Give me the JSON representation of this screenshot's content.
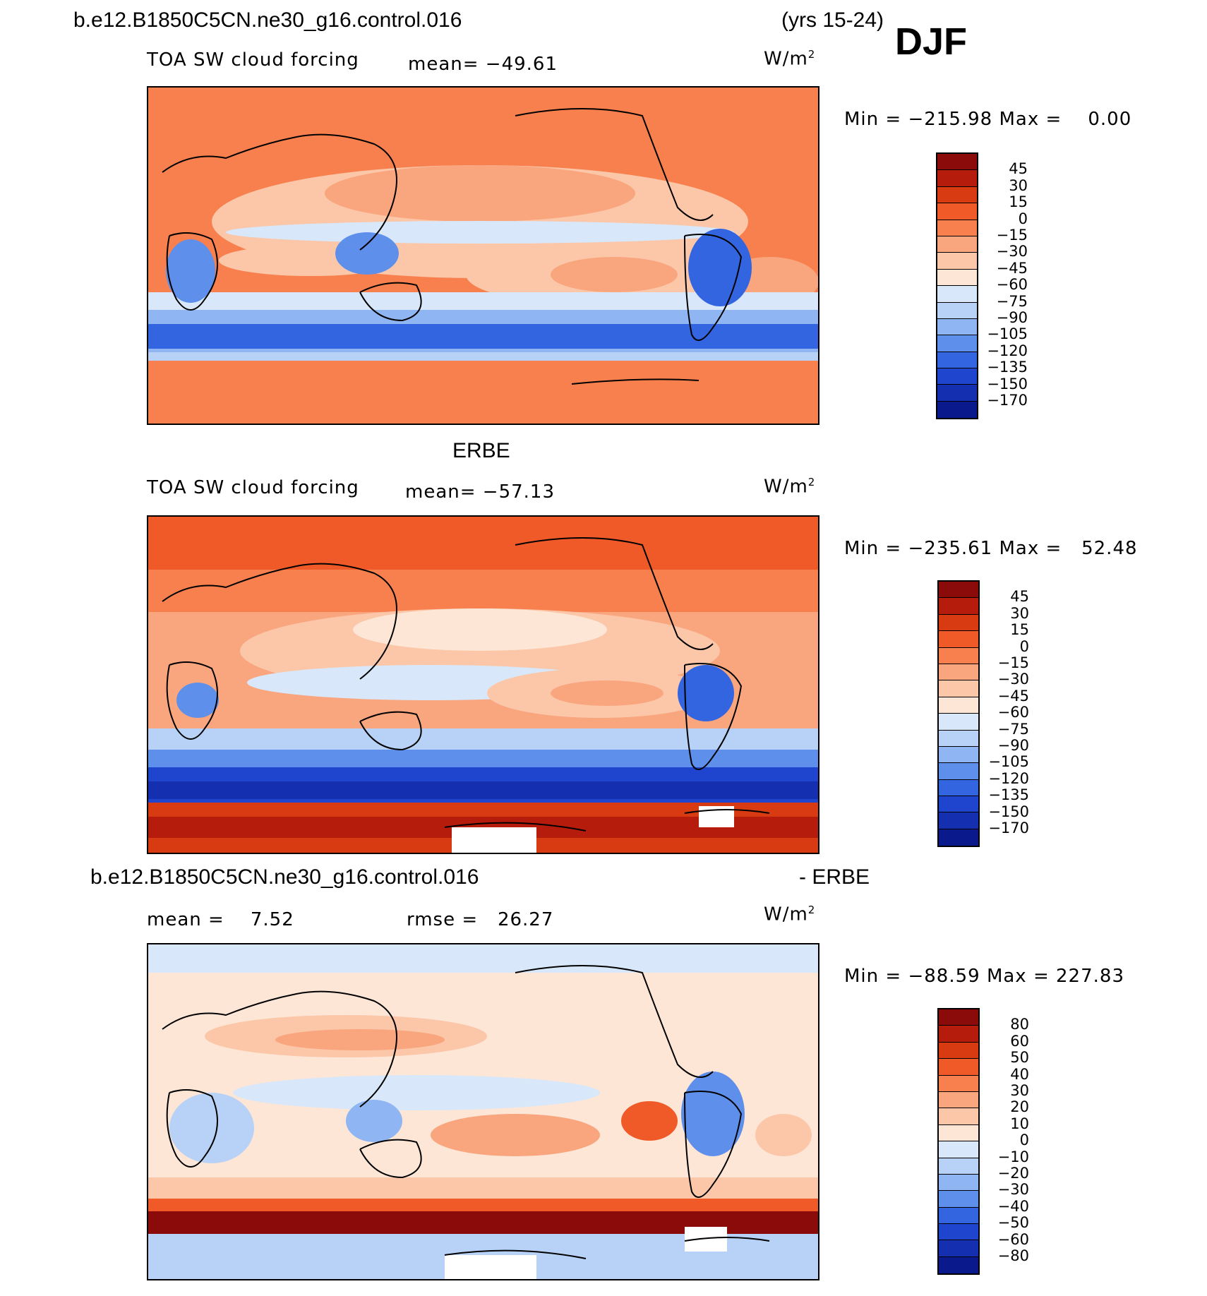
{
  "header": {
    "case_name": "b.e12.B1850C5CN.ne30_g16.control.016",
    "years": "(yrs 15-24)",
    "season": "DJF"
  },
  "panel1": {
    "variable": "TOA SW cloud forcing",
    "mean_label": "mean=",
    "mean_value": "−49.61",
    "units": "W/m",
    "units_exp": "2",
    "min_label": "Min =",
    "min_value": "−215.98",
    "max_label": "Max =",
    "max_value": "0.00"
  },
  "panel2": {
    "title": "ERBE",
    "variable": "TOA SW cloud forcing",
    "mean_label": "mean=",
    "mean_value": "−57.13",
    "units": "W/m",
    "units_exp": "2",
    "min_label": "Min =",
    "min_value": "−235.61",
    "max_label": "Max =",
    "max_value": "52.48"
  },
  "panel3": {
    "title_left": "b.e12.B1850C5CN.ne30_g16.control.016",
    "title_right": "- ERBE",
    "mean_label": "mean =",
    "mean_value": "7.52",
    "rmse_label": "rmse =",
    "rmse_value": "26.27",
    "units": "W/m",
    "units_exp": "2",
    "min_label": "Min =",
    "min_value": "−88.59",
    "max_label": "Max =",
    "max_value": "227.83"
  },
  "colorbar_abs": {
    "labels": [
      "45",
      "30",
      "15",
      "0",
      "−15",
      "−30",
      "−45",
      "−60",
      "−75",
      "−90",
      "−105",
      "−120",
      "−135",
      "−150",
      "−170"
    ],
    "colors": [
      "#8b0a0a",
      "#b51c0c",
      "#d83a12",
      "#f05a28",
      "#f7804e",
      "#f9a57e",
      "#fbc7a8",
      "#fde6d6",
      "#d8e8fa",
      "#b7d2f6",
      "#8fb6f2",
      "#5e8fea",
      "#3365e0",
      "#1f45cf",
      "#1430b0",
      "#0a1a8c"
    ]
  },
  "colorbar_diff": {
    "labels": [
      "80",
      "60",
      "50",
      "40",
      "30",
      "20",
      "10",
      "0",
      "−10",
      "−20",
      "−30",
      "−40",
      "−50",
      "−60",
      "−80"
    ],
    "colors": [
      "#8b0a0a",
      "#b51c0c",
      "#d83a12",
      "#f05a28",
      "#f7804e",
      "#f9a57e",
      "#fbc7a8",
      "#fde6d6",
      "#d8e8fa",
      "#b7d2f6",
      "#8fb6f2",
      "#5e8fea",
      "#3365e0",
      "#1f45cf",
      "#1430b0",
      "#0a1a8c"
    ]
  }
}
